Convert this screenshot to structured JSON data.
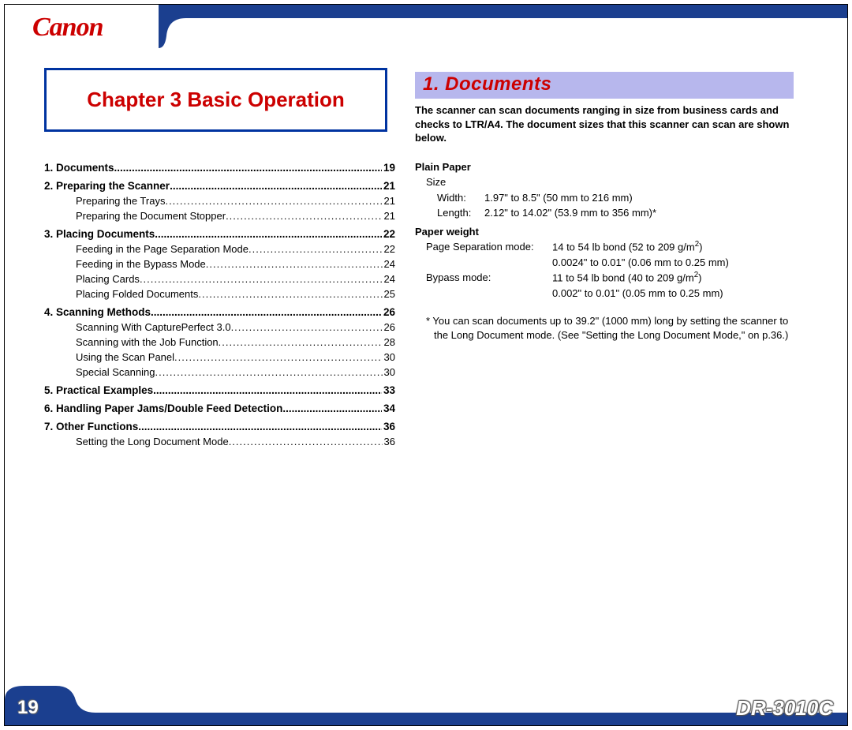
{
  "brand": "Canon",
  "colors": {
    "brand_red": "#cc0000",
    "header_blue": "#1b3f8f",
    "border_blue": "#0033a0",
    "section_bg": "#b7b7ed",
    "footer_blue": "#1b3f8f"
  },
  "chapter": {
    "label": "Chapter 3 Basic Operation"
  },
  "toc": [
    {
      "type": "main",
      "label": "1. Documents",
      "page": "19"
    },
    {
      "type": "main",
      "label": "2. Preparing the Scanner",
      "page": "21"
    },
    {
      "type": "sub",
      "label": "Preparing the Trays",
      "page": "21"
    },
    {
      "type": "sub",
      "label": "Preparing the Document Stopper",
      "page": "21"
    },
    {
      "type": "main",
      "label": "3. Placing Documents",
      "page": "22"
    },
    {
      "type": "sub",
      "label": "Feeding in the Page Separation Mode",
      "page": "22"
    },
    {
      "type": "sub",
      "label": "Feeding in the Bypass Mode",
      "page": "24"
    },
    {
      "type": "sub",
      "label": "Placing Cards",
      "page": "24"
    },
    {
      "type": "sub",
      "label": "Placing Folded Documents",
      "page": "25"
    },
    {
      "type": "main",
      "label": "4. Scanning Methods",
      "page": "26"
    },
    {
      "type": "sub",
      "label": "Scanning With CapturePerfect 3.0",
      "page": "26"
    },
    {
      "type": "sub",
      "label": "Scanning with the Job Function",
      "page": "28"
    },
    {
      "type": "sub",
      "label": "Using the Scan Panel",
      "page": "30"
    },
    {
      "type": "sub",
      "label": "Special Scanning",
      "page": "30"
    },
    {
      "type": "main",
      "label": "5. Practical Examples",
      "page": "33"
    },
    {
      "type": "main",
      "label": "6. Handling Paper Jams/Double Feed Detection",
      "page": "34"
    },
    {
      "type": "main",
      "label": "7. Other Functions",
      "page": "36"
    },
    {
      "type": "sub",
      "label": "Setting the Long Document Mode",
      "page": "36"
    }
  ],
  "section": {
    "title": "1. Documents",
    "intro": "The scanner can scan documents ranging in size from business cards and checks to LTR/A4. The document sizes that this scanner can scan are shown below.",
    "plain_paper_label": "Plain Paper",
    "size_label": "Size",
    "width_key": "Width:",
    "width_val": "1.97\" to 8.5\" (50 mm to 216 mm)",
    "length_key": "Length:",
    "length_val": "2.12\" to 14.02\" (53.9 mm to 356 mm)*",
    "paper_weight_label": "Paper weight",
    "mode1_key": "Page Separation mode:",
    "mode1_v1_pre": "14 to 54 lb bond (52 to 209 g/m",
    "mode1_v1_sup": "2",
    "mode1_v1_post": ")",
    "mode1_v2": "0.0024\" to 0.01\" (0.06 mm to 0.25 mm)",
    "mode2_key": "Bypass mode:",
    "mode2_v1_pre": "11 to 54 lb bond (40 to 209 g/m",
    "mode2_v1_sup": "2",
    "mode2_v1_post": ")",
    "mode2_v2": "0.002\" to 0.01\" (0.05 mm to 0.25 mm)",
    "footnote": "* You can scan documents up to 39.2\" (1000 mm) long by setting the scanner to the Long Document mode. (See \"Setting the Long Document Mode,\" on p.36.)"
  },
  "footer": {
    "page": "19",
    "model": "DR-3010C"
  }
}
